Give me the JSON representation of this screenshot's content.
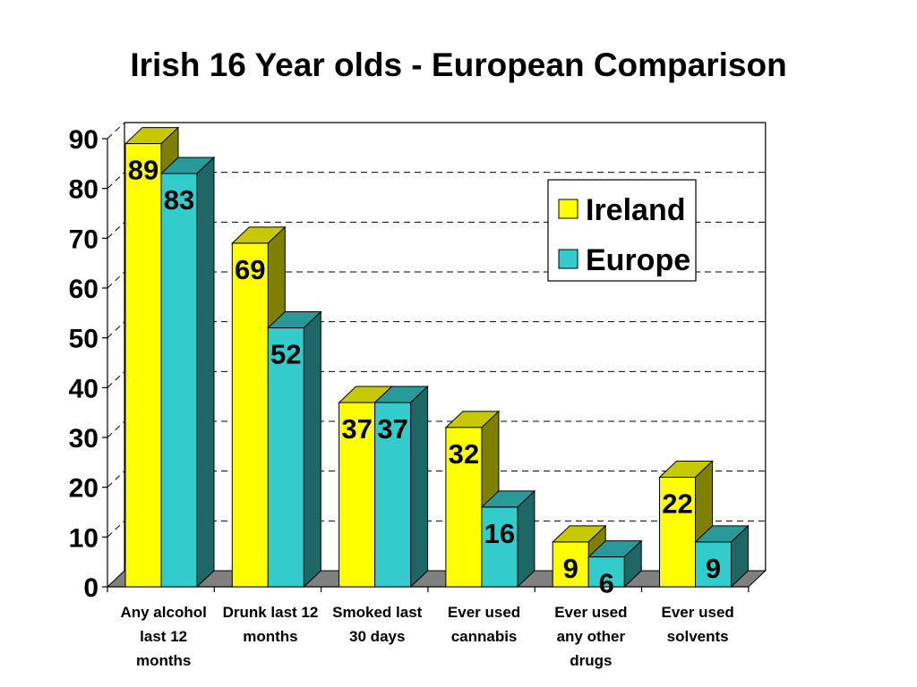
{
  "chart_data": {
    "type": "bar",
    "title": "Irish 16 Year olds - European Comparison",
    "categories": [
      [
        "Any alcohol",
        "last 12",
        "months"
      ],
      [
        "Drunk last 12",
        "months"
      ],
      [
        "Smoked last",
        "30 days"
      ],
      [
        "Ever used",
        "cannabis"
      ],
      [
        "Ever used",
        "any other",
        "drugs"
      ],
      [
        "Ever used",
        "solvents"
      ]
    ],
    "series": [
      {
        "name": "Ireland",
        "values": [
          89,
          69,
          37,
          32,
          9,
          22
        ],
        "color": "#ffff00",
        "top_color": "#c8c800",
        "side_color": "#808000"
      },
      {
        "name": "Europe",
        "values": [
          83,
          52,
          37,
          16,
          6,
          9
        ],
        "color": "#33cccc",
        "top_color": "#2a9999",
        "side_color": "#1f6666"
      }
    ],
    "yticks": [
      0,
      10,
      20,
      30,
      40,
      50,
      60,
      70,
      80,
      90
    ],
    "ylim": [
      0,
      90
    ],
    "grid": true,
    "grid_style": "dashed",
    "three_d": true,
    "legend_position": "right",
    "floor_color": "#808080"
  }
}
